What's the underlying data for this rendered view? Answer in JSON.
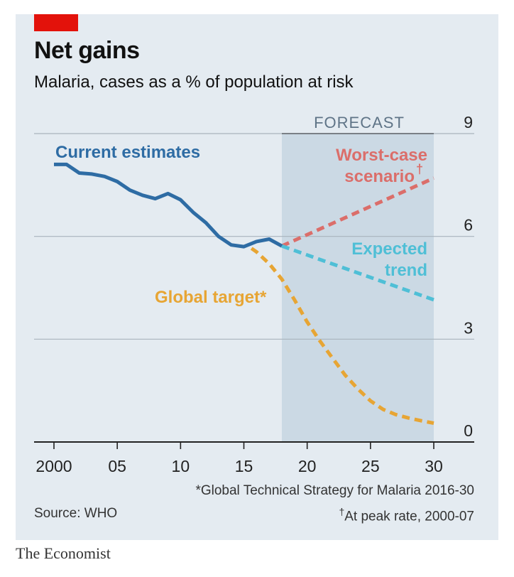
{
  "header": {
    "title": "Net gains",
    "subtitle": "Malaria, cases as a % of population at risk",
    "accent_color": "#e3120b"
  },
  "chart_data": {
    "type": "line",
    "title": "Net gains",
    "subtitle": "Malaria, cases as a % of population at risk",
    "xlim": [
      2000,
      2030
    ],
    "ylim": [
      0,
      9
    ],
    "x_ticks": [
      2000,
      2005,
      2010,
      2015,
      2020,
      2025,
      2030
    ],
    "x_tick_labels": [
      "2000",
      "05",
      "10",
      "15",
      "20",
      "25",
      "30"
    ],
    "y_ticks": [
      0,
      3,
      6,
      9
    ],
    "y_tick_labels": [
      "0",
      "3",
      "6",
      "9"
    ],
    "grid": true,
    "forecast_band": {
      "label": "FORECAST",
      "from": 2018,
      "to": 2030
    },
    "series": [
      {
        "name": "Current estimates",
        "style": "solid",
        "color": "#2e6ca4",
        "x": [
          2000,
          2001,
          2002,
          2003,
          2004,
          2005,
          2006,
          2007,
          2008,
          2009,
          2010,
          2011,
          2012,
          2013,
          2014,
          2015,
          2016,
          2017,
          2018
        ],
        "y": [
          8.1,
          8.1,
          7.85,
          7.82,
          7.75,
          7.6,
          7.35,
          7.2,
          7.1,
          7.25,
          7.07,
          6.7,
          6.4,
          6.0,
          5.75,
          5.7,
          5.85,
          5.92,
          5.72
        ]
      },
      {
        "name": "Worst-case scenario†",
        "label_lines": [
          "Worst-case",
          "scenario"
        ],
        "style": "dashed",
        "color": "#db6e6a",
        "x": [
          2018,
          2030
        ],
        "y": [
          5.72,
          7.7
        ]
      },
      {
        "name": "Expected trend",
        "label_lines": [
          "Expected",
          "trend"
        ],
        "style": "dashed",
        "color": "#4fbfd6",
        "x": [
          2018,
          2030
        ],
        "y": [
          5.72,
          4.15
        ]
      },
      {
        "name": "Global target*",
        "style": "dashed",
        "color": "#e7a534",
        "x": [
          2015.6,
          2016,
          2017,
          2018,
          2019,
          2020,
          2021,
          2022,
          2023,
          2024,
          2025,
          2026,
          2027,
          2028,
          2029,
          2030
        ],
        "y": [
          5.65,
          5.55,
          5.2,
          4.75,
          4.15,
          3.5,
          2.95,
          2.45,
          1.95,
          1.55,
          1.2,
          0.95,
          0.8,
          0.7,
          0.62,
          0.55
        ]
      }
    ]
  },
  "footnotes": {
    "global_target": "*Global Technical Strategy for Malaria 2016-30",
    "worst_case_mark": "†",
    "worst_case": "At peak rate, 2000-07"
  },
  "source": "Source: WHO",
  "brand": "The Economist"
}
